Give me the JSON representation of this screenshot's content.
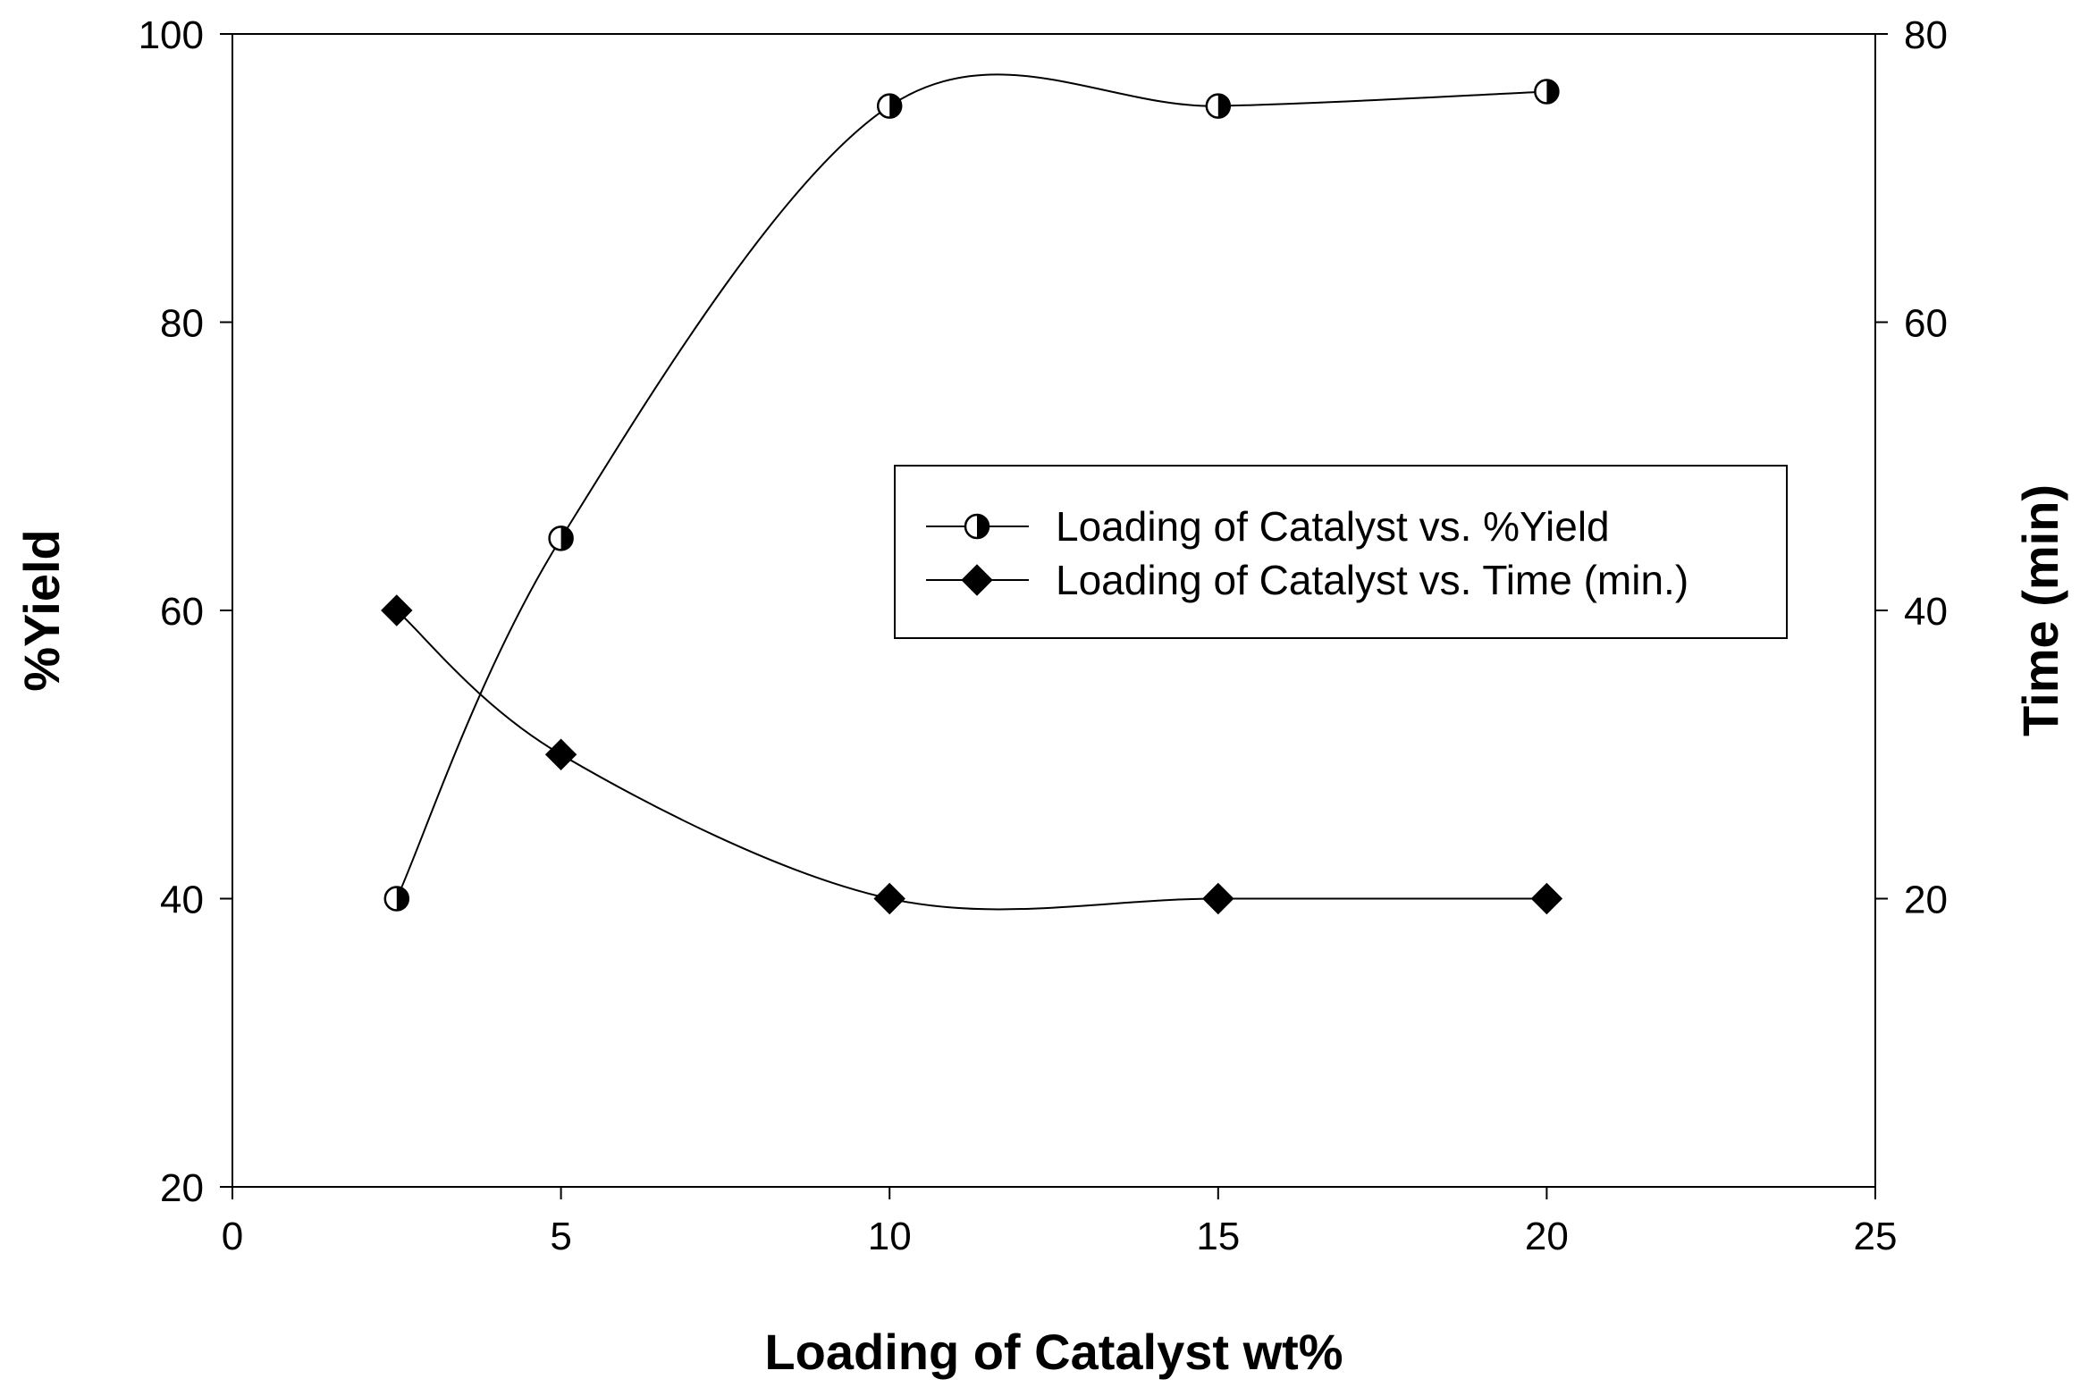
{
  "chart_data": {
    "type": "line",
    "xlabel": "Loading of Catalyst  wt%",
    "ylabel": "%Yield",
    "y2label": "Time (min)",
    "xlim": [
      0,
      25
    ],
    "ylim": [
      20,
      100
    ],
    "y2lim": [
      0,
      80
    ],
    "xticks": [
      0,
      5,
      10,
      15,
      20,
      25
    ],
    "yticks": [
      20,
      40,
      60,
      80,
      100
    ],
    "y2ticks": [
      20,
      40,
      60,
      80
    ],
    "grid": false,
    "legend_position": "center-right",
    "series": [
      {
        "name": "Loading of Catalyst vs. %Yield",
        "axis": "left",
        "marker": "half-filled-circle",
        "x": [
          2.5,
          5,
          10,
          15,
          20
        ],
        "y": [
          40,
          65,
          95,
          95,
          96
        ]
      },
      {
        "name": "Loading of Catalyst vs. Time (min.)",
        "axis": "right",
        "marker": "filled-diamond",
        "x": [
          2.5,
          5,
          10,
          15,
          20
        ],
        "y": [
          40,
          30,
          20,
          20,
          20
        ]
      }
    ],
    "colors": {
      "line": "#000000",
      "marker_fill": "#000000",
      "marker_open": "#ffffff"
    }
  }
}
